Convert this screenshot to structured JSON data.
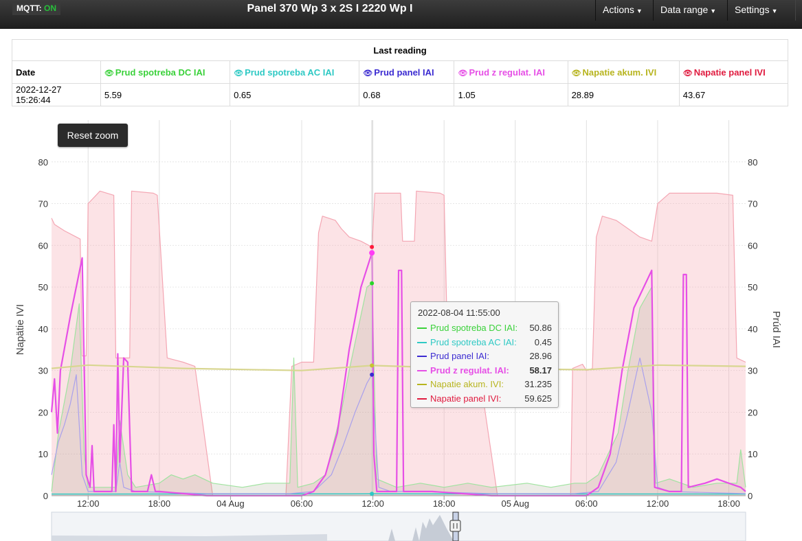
{
  "navbar": {
    "mqtt_label": "MQTT:",
    "mqtt_status": "ON",
    "title": "Panel 370 Wp 3 x 2S I 2220 Wp I",
    "menus": [
      "Actions",
      "Data range",
      "Settings"
    ]
  },
  "last_reading": {
    "caption": "Last reading",
    "date_header": "Date",
    "date_value": "2022-12-27 15:26:44",
    "columns": [
      {
        "name": "Prud spotreba DC IAI",
        "value": "5.59",
        "color": "#3ad13a"
      },
      {
        "name": "Prud spotreba AC IAI",
        "value": "0.65",
        "color": "#2ec9c4"
      },
      {
        "name": "Prud panel IAI",
        "value": "0.68",
        "color": "#3b2bd1"
      },
      {
        "name": "Prud z regulat. IAI",
        "value": "1.05",
        "color": "#e64fe6"
      },
      {
        "name": "Napatie akum. IVI",
        "value": "28.89",
        "color": "#b7b41e"
      },
      {
        "name": "Napatie panel IVI",
        "value": "43.67",
        "color": "#e01b3f"
      }
    ]
  },
  "reset_zoom_label": "Reset zoom",
  "tooltip": {
    "date": "2022-08-04 11:55:00",
    "rows": [
      {
        "name": "Prud spotreba DC IAI:",
        "value": "50.86",
        "color": "#3ad13a",
        "bold": false
      },
      {
        "name": "Prud spotreba AC IAI:",
        "value": "0.45",
        "color": "#2ec9c4",
        "bold": false
      },
      {
        "name": "Prud panel IAI:",
        "value": "28.96",
        "color": "#3b2bd1",
        "bold": false
      },
      {
        "name": "Prud z regulat. IAI:",
        "value": "58.17",
        "color": "#e64fe6",
        "bold": true
      },
      {
        "name": "Napatie akum. IVI:",
        "value": "31.235",
        "color": "#b7b41e",
        "bold": false
      },
      {
        "name": "Napatie panel IVI:",
        "value": "59.625",
        "color": "#e01b3f",
        "bold": false
      }
    ]
  },
  "chart_data": {
    "type": "line",
    "ylabel": "Napätie IVI",
    "y2label": "Prúd IAI",
    "ylim": [
      0,
      90
    ],
    "y2lim": [
      0,
      90
    ],
    "yticks": [
      0,
      10,
      20,
      30,
      40,
      50,
      60,
      70,
      80
    ],
    "xlim": [
      "2022-08-03 08:55",
      "2022-08-05 19:25"
    ],
    "xticks": [
      {
        "t": "2022-08-03 12:00",
        "label": "12:00"
      },
      {
        "t": "2022-08-03 18:00",
        "label": "18:00"
      },
      {
        "t": "2022-08-04 00:00",
        "label": "04 Aug"
      },
      {
        "t": "2022-08-04 06:00",
        "label": "06:00"
      },
      {
        "t": "2022-08-04 12:00",
        "label": "12:00"
      },
      {
        "t": "2022-08-04 18:00",
        "label": "18:00"
      },
      {
        "t": "2022-08-05 00:00",
        "label": "05 Aug"
      },
      {
        "t": "2022-08-05 06:00",
        "label": "06:00"
      },
      {
        "t": "2022-08-05 12:00",
        "label": "12:00"
      },
      {
        "t": "2022-08-05 18:00",
        "label": "18:00"
      }
    ],
    "crosshair": "2022-08-04 11:55",
    "grid": true,
    "series": [
      {
        "name": "Napatie panel IVI",
        "color": "#e01b3f",
        "axis": "left",
        "area": true,
        "points": [
          [
            "2022-08-03 08:55",
            66.5
          ],
          [
            "2022-08-03 09:10",
            65
          ],
          [
            "2022-08-03 10:00",
            63.5
          ],
          [
            "2022-08-03 11:00",
            62
          ],
          [
            "2022-08-03 11:20",
            61.5
          ],
          [
            "2022-08-03 11:30",
            33.5
          ],
          [
            "2022-08-03 11:50",
            33.5
          ],
          [
            "2022-08-03 12:00",
            70
          ],
          [
            "2022-08-03 13:00",
            73
          ],
          [
            "2022-08-03 14:10",
            72
          ],
          [
            "2022-08-03 14:20",
            33
          ],
          [
            "2022-08-03 15:30",
            33
          ],
          [
            "2022-08-03 15:40",
            73
          ],
          [
            "2022-08-03 17:30",
            72.5
          ],
          [
            "2022-08-03 17:50",
            72
          ],
          [
            "2022-08-03 18:40",
            33
          ],
          [
            "2022-08-03 20:00",
            32
          ],
          [
            "2022-08-03 21:00",
            31
          ],
          [
            "2022-08-03 22:30",
            0
          ],
          [
            "2022-08-04 04:40",
            0
          ],
          [
            "2022-08-04 05:10",
            31
          ],
          [
            "2022-08-04 06:00",
            32
          ],
          [
            "2022-08-04 07:00",
            32
          ],
          [
            "2022-08-04 07:25",
            63
          ],
          [
            "2022-08-04 07:45",
            67
          ],
          [
            "2022-08-04 08:50",
            66
          ],
          [
            "2022-08-04 09:20",
            64
          ],
          [
            "2022-08-04 10:00",
            62
          ],
          [
            "2022-08-04 11:00",
            61
          ],
          [
            "2022-08-04 11:55",
            59.6
          ],
          [
            "2022-08-04 12:10",
            72.5
          ],
          [
            "2022-08-04 14:20",
            72.5
          ],
          [
            "2022-08-04 14:30",
            61
          ],
          [
            "2022-08-04 15:30",
            61
          ],
          [
            "2022-08-04 15:40",
            73
          ],
          [
            "2022-08-04 17:40",
            72.5
          ],
          [
            "2022-08-04 18:00",
            72
          ],
          [
            "2022-08-04 18:20",
            31
          ],
          [
            "2022-08-04 20:00",
            30
          ],
          [
            "2022-08-04 21:00",
            29
          ],
          [
            "2022-08-04 22:30",
            0
          ],
          [
            "2022-08-05 04:40",
            0
          ],
          [
            "2022-08-05 04:50",
            30.5
          ],
          [
            "2022-08-05 05:40",
            31.5
          ],
          [
            "2022-08-05 06:00",
            30
          ],
          [
            "2022-08-05 06:30",
            30.5
          ],
          [
            "2022-08-05 06:50",
            62
          ],
          [
            "2022-08-05 07:20",
            67
          ],
          [
            "2022-08-05 08:30",
            66
          ],
          [
            "2022-08-05 09:30",
            64
          ],
          [
            "2022-08-05 10:30",
            62
          ],
          [
            "2022-08-05 11:30",
            61
          ],
          [
            "2022-08-05 12:00",
            70
          ],
          [
            "2022-08-05 13:00",
            72.5
          ],
          [
            "2022-08-05 14:45",
            72.5
          ],
          [
            "2022-08-05 15:00",
            72.5
          ],
          [
            "2022-08-05 17:00",
            72.5
          ],
          [
            "2022-08-05 18:20",
            72
          ],
          [
            "2022-08-05 18:40",
            33
          ],
          [
            "2022-08-05 19:25",
            32
          ]
        ]
      },
      {
        "name": "Prud spotreba DC IAI",
        "color": "#3ad13a",
        "axis": "left",
        "area": true,
        "points": [
          [
            "2022-08-03 08:55",
            1
          ],
          [
            "2022-08-03 09:30",
            15
          ],
          [
            "2022-08-03 10:30",
            30
          ],
          [
            "2022-08-03 11:15",
            46
          ],
          [
            "2022-08-03 11:40",
            10
          ],
          [
            "2022-08-03 12:00",
            2
          ],
          [
            "2022-08-03 14:20",
            2
          ],
          [
            "2022-08-03 14:40",
            18
          ],
          [
            "2022-08-03 15:20",
            5
          ],
          [
            "2022-08-03 16:00",
            2
          ],
          [
            "2022-08-03 18:00",
            3
          ],
          [
            "2022-08-03 19:00",
            5
          ],
          [
            "2022-08-03 20:00",
            4
          ],
          [
            "2022-08-03 21:00",
            5
          ],
          [
            "2022-08-03 22:30",
            3
          ],
          [
            "2022-08-04 01:00",
            2
          ],
          [
            "2022-08-04 03:00",
            3
          ],
          [
            "2022-08-04 05:00",
            3
          ],
          [
            "2022-08-04 05:20",
            33
          ],
          [
            "2022-08-04 05:40",
            2
          ],
          [
            "2022-08-04 07:00",
            3
          ],
          [
            "2022-08-04 08:00",
            5
          ],
          [
            "2022-08-04 09:20",
            20
          ],
          [
            "2022-08-04 10:00",
            30
          ],
          [
            "2022-08-04 10:45",
            40
          ],
          [
            "2022-08-04 11:30",
            50
          ],
          [
            "2022-08-04 11:55",
            50.9
          ],
          [
            "2022-08-04 12:20",
            4
          ],
          [
            "2022-08-04 14:00",
            2
          ],
          [
            "2022-08-04 16:00",
            3
          ],
          [
            "2022-08-04 18:00",
            2
          ],
          [
            "2022-08-04 20:00",
            3
          ],
          [
            "2022-08-04 22:00",
            2
          ],
          [
            "2022-08-05 01:00",
            3
          ],
          [
            "2022-08-05 03:00",
            2
          ],
          [
            "2022-08-05 05:00",
            3
          ],
          [
            "2022-08-05 06:00",
            3
          ],
          [
            "2022-08-05 07:00",
            5
          ],
          [
            "2022-08-05 08:40",
            15
          ],
          [
            "2022-08-05 09:30",
            30
          ],
          [
            "2022-08-05 10:30",
            45
          ],
          [
            "2022-08-05 11:30",
            50
          ],
          [
            "2022-08-05 11:50",
            3
          ],
          [
            "2022-08-05 13:00",
            4
          ],
          [
            "2022-08-05 15:00",
            2
          ],
          [
            "2022-08-05 17:00",
            3
          ],
          [
            "2022-08-05 18:40",
            3
          ],
          [
            "2022-08-05 19:00",
            11
          ],
          [
            "2022-08-05 19:25",
            2
          ]
        ]
      },
      {
        "name": "Prud spotreba AC IAI",
        "color": "#2ec9c4",
        "axis": "left",
        "area": false,
        "points": [
          [
            "2022-08-03 08:55",
            0.4
          ],
          [
            "2022-08-04 11:55",
            0.45
          ],
          [
            "2022-08-05 19:25",
            0.4
          ]
        ]
      },
      {
        "name": "Prud panel IAI",
        "color": "#3b2bd1",
        "axis": "left",
        "area": false,
        "points": [
          [
            "2022-08-03 08:55",
            5
          ],
          [
            "2022-08-03 09:30",
            13
          ],
          [
            "2022-08-03 10:00",
            17
          ],
          [
            "2022-08-03 10:30",
            22
          ],
          [
            "2022-08-03 11:00",
            29
          ],
          [
            "2022-08-03 11:30",
            5
          ],
          [
            "2022-08-03 12:00",
            1
          ],
          [
            "2022-08-03 14:20",
            1
          ],
          [
            "2022-08-03 14:40",
            8
          ],
          [
            "2022-08-03 15:00",
            2
          ],
          [
            "2022-08-03 16:00",
            1
          ],
          [
            "2022-08-03 22:00",
            0.5
          ],
          [
            "2022-08-04 05:00",
            0.5
          ],
          [
            "2022-08-04 07:00",
            1
          ],
          [
            "2022-08-04 08:30",
            5
          ],
          [
            "2022-08-04 09:30",
            12
          ],
          [
            "2022-08-04 10:30",
            20
          ],
          [
            "2022-08-04 11:30",
            27
          ],
          [
            "2022-08-04 11:55",
            29
          ],
          [
            "2022-08-04 12:30",
            2
          ],
          [
            "2022-08-04 13:30",
            1
          ],
          [
            "2022-08-04 16:00",
            1
          ],
          [
            "2022-08-04 22:00",
            0.5
          ],
          [
            "2022-08-05 05:00",
            0.5
          ],
          [
            "2022-08-05 07:00",
            1
          ],
          [
            "2022-08-05 08:30",
            8
          ],
          [
            "2022-08-05 09:30",
            20
          ],
          [
            "2022-08-05 10:30",
            33
          ],
          [
            "2022-08-05 11:30",
            20
          ],
          [
            "2022-08-05 12:00",
            2
          ],
          [
            "2022-08-05 13:00",
            1
          ],
          [
            "2022-08-05 19:25",
            0.5
          ]
        ]
      },
      {
        "name": "Prud z regulat. IAI",
        "color": "#e64fe6",
        "axis": "left",
        "area": false,
        "points": [
          [
            "2022-08-03 08:55",
            20
          ],
          [
            "2022-08-03 09:10",
            28
          ],
          [
            "2022-08-03 09:25",
            15
          ],
          [
            "2022-08-03 09:40",
            30
          ],
          [
            "2022-08-03 10:30",
            43
          ],
          [
            "2022-08-03 11:30",
            57
          ],
          [
            "2022-08-03 11:50",
            5
          ],
          [
            "2022-08-03 12:10",
            2
          ],
          [
            "2022-08-03 12:20",
            12
          ],
          [
            "2022-08-03 12:30",
            1
          ],
          [
            "2022-08-03 14:00",
            1
          ],
          [
            "2022-08-03 14:10",
            17
          ],
          [
            "2022-08-03 14:20",
            1
          ],
          [
            "2022-08-03 14:30",
            34
          ],
          [
            "2022-08-03 14:40",
            8
          ],
          [
            "2022-08-03 15:00",
            33
          ],
          [
            "2022-08-03 15:20",
            32
          ],
          [
            "2022-08-03 15:40",
            1
          ],
          [
            "2022-08-03 17:00",
            1
          ],
          [
            "2022-08-03 17:20",
            5
          ],
          [
            "2022-08-03 17:40",
            1
          ],
          [
            "2022-08-03 18:00",
            1
          ],
          [
            "2022-08-03 22:00",
            0
          ],
          [
            "2022-08-04 06:00",
            0
          ],
          [
            "2022-08-04 07:00",
            1
          ],
          [
            "2022-08-04 08:00",
            5
          ],
          [
            "2022-08-04 09:00",
            15
          ],
          [
            "2022-08-04 10:00",
            35
          ],
          [
            "2022-08-04 11:00",
            50
          ],
          [
            "2022-08-04 11:55",
            58.2
          ],
          [
            "2022-08-04 12:05",
            10
          ],
          [
            "2022-08-04 12:20",
            1
          ],
          [
            "2022-08-04 14:00",
            1
          ],
          [
            "2022-08-04 14:10",
            54
          ],
          [
            "2022-08-04 14:25",
            54
          ],
          [
            "2022-08-04 14:35",
            1
          ],
          [
            "2022-08-04 16:00",
            1
          ],
          [
            "2022-08-04 17:00",
            1
          ],
          [
            "2022-08-04 22:00",
            0
          ],
          [
            "2022-08-05 05:00",
            0
          ],
          [
            "2022-08-05 06:00",
            0
          ],
          [
            "2022-08-05 07:00",
            2
          ],
          [
            "2022-08-05 08:00",
            10
          ],
          [
            "2022-08-05 09:00",
            30
          ],
          [
            "2022-08-05 10:00",
            45
          ],
          [
            "2022-08-05 11:30",
            54
          ],
          [
            "2022-08-05 11:45",
            2
          ],
          [
            "2022-08-05 13:00",
            1
          ],
          [
            "2022-08-05 14:00",
            1
          ],
          [
            "2022-08-05 14:10",
            53
          ],
          [
            "2022-08-05 14:25",
            53
          ],
          [
            "2022-08-05 14:35",
            2
          ],
          [
            "2022-08-05 16:00",
            3
          ],
          [
            "2022-08-05 17:00",
            4
          ],
          [
            "2022-08-05 18:00",
            3
          ],
          [
            "2022-08-05 19:00",
            2
          ],
          [
            "2022-08-05 19:25",
            1
          ]
        ]
      },
      {
        "name": "Napatie akum. IVI",
        "color": "#b7b41e",
        "axis": "left",
        "area": false,
        "points": [
          [
            "2022-08-03 08:55",
            30.5
          ],
          [
            "2022-08-03 12:00",
            31.3
          ],
          [
            "2022-08-03 20:00",
            30.5
          ],
          [
            "2022-08-04 06:00",
            30.0
          ],
          [
            "2022-08-04 11:55",
            31.2
          ],
          [
            "2022-08-04 20:00",
            30.5
          ],
          [
            "2022-08-05 06:00",
            30.2
          ],
          [
            "2022-08-05 12:00",
            31.3
          ],
          [
            "2022-08-05 19:25",
            31.0
          ]
        ]
      }
    ],
    "navigator": {
      "xlim": [
        "2022-06-05",
        "2022-12-27"
      ],
      "selected": [
        "2022-08-03 08:55",
        "2022-08-05 19:25"
      ]
    }
  }
}
